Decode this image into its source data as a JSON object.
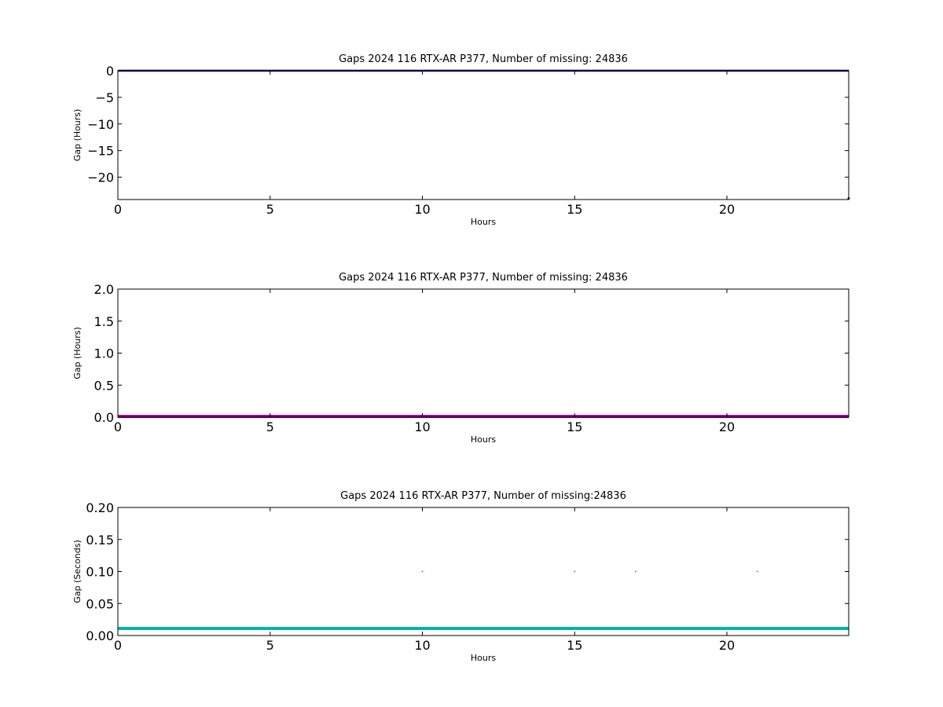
{
  "chart_data": [
    {
      "type": "line",
      "title": "Gaps 2024 116 RTX-AR  P377, Number of missing: 24836",
      "xlabel": "Hours",
      "ylabel": "Gap (Hours)",
      "xlim": [
        0,
        24
      ],
      "ylim": [
        -24.2,
        0
      ],
      "xticks": [
        "0",
        "5",
        "10",
        "15",
        "20"
      ],
      "yticks": [
        "0",
        "−5",
        "−10",
        "−15",
        "−20"
      ],
      "grid": false,
      "series": [
        {
          "color": "#000080",
          "x": [
            0,
            24
          ],
          "y": [
            0,
            0
          ]
        }
      ],
      "points": [
        {
          "color": "#000080",
          "x": 24,
          "y": -24
        }
      ]
    },
    {
      "type": "line",
      "title": "Gaps 2024 116 RTX-AR  P377, Number of missing: 24836",
      "xlabel": "Hours",
      "ylabel": "Gap (Hours)",
      "xlim": [
        0,
        24
      ],
      "ylim": [
        0,
        2
      ],
      "xticks": [
        "0",
        "5",
        "10",
        "15",
        "20"
      ],
      "yticks": [
        "0.0",
        "0.5",
        "1.0",
        "1.5",
        "2.0"
      ],
      "grid": false,
      "series": [
        {
          "color": "#990099",
          "x": [
            0,
            24
          ],
          "y": [
            0.01,
            0.01
          ]
        }
      ],
      "points": []
    },
    {
      "type": "scatter",
      "title": "Gaps 2024 116 RTX-AR  P377, Number of missing:24836",
      "xlabel": "Hours",
      "ylabel": "Gap (Seconds)",
      "xlim": [
        0,
        24
      ],
      "ylim": [
        0,
        0.2
      ],
      "xticks": [
        "0",
        "5",
        "10",
        "15",
        "20"
      ],
      "yticks": [
        "0.00",
        "0.05",
        "0.10",
        "0.15",
        "0.20"
      ],
      "grid": false,
      "series": [
        {
          "color": "#00b3b3",
          "x": [
            0,
            24
          ],
          "y": [
            0.011,
            0.011
          ]
        }
      ],
      "points": [
        {
          "color": "#00b3b3",
          "x": 10,
          "y": 0.1
        },
        {
          "color": "#00b3b3",
          "x": 15,
          "y": 0.1
        },
        {
          "color": "#00b3b3",
          "x": 17,
          "y": 0.1
        },
        {
          "color": "#00b3b3",
          "x": 21,
          "y": 0.1
        }
      ]
    }
  ]
}
